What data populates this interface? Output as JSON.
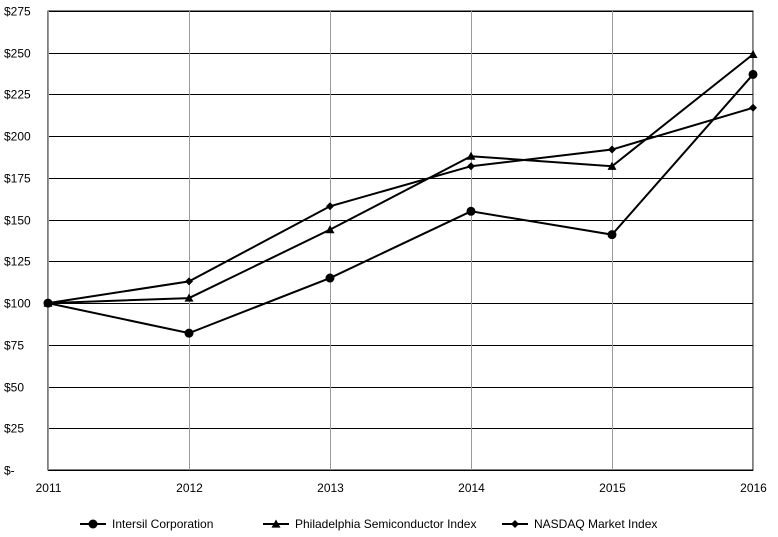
{
  "chart_data": {
    "type": "line",
    "title": "",
    "xlabel": "",
    "ylabel": "",
    "x": [
      "2011",
      "2012",
      "2013",
      "2014",
      "2015",
      "2016"
    ],
    "ylim": [
      0,
      275
    ],
    "y_ticks": [
      {
        "value": 0,
        "label": "$-"
      },
      {
        "value": 25,
        "label": "$25"
      },
      {
        "value": 50,
        "label": "$50"
      },
      {
        "value": 75,
        "label": "$75"
      },
      {
        "value": 100,
        "label": "$100"
      },
      {
        "value": 125,
        "label": "$125"
      },
      {
        "value": 150,
        "label": "$150"
      },
      {
        "value": 175,
        "label": "$175"
      },
      {
        "value": 200,
        "label": "$200"
      },
      {
        "value": 225,
        "label": "$225"
      },
      {
        "value": 250,
        "label": "$250"
      },
      {
        "value": 275,
        "label": "$275"
      }
    ],
    "grid": true,
    "legend_position": "bottom",
    "series": [
      {
        "name": "Intersil Corporation",
        "marker": "circle",
        "color": "#000000",
        "values": [
          100,
          82,
          115,
          155,
          141,
          237
        ]
      },
      {
        "name": "Philadelphia Semiconductor Index",
        "marker": "triangle",
        "color": "#000000",
        "values": [
          100,
          103,
          144,
          188,
          182,
          249
        ]
      },
      {
        "name": "NASDAQ Market Index",
        "marker": "diamond",
        "color": "#000000",
        "values": [
          100,
          113,
          158,
          182,
          192,
          217
        ]
      }
    ]
  }
}
